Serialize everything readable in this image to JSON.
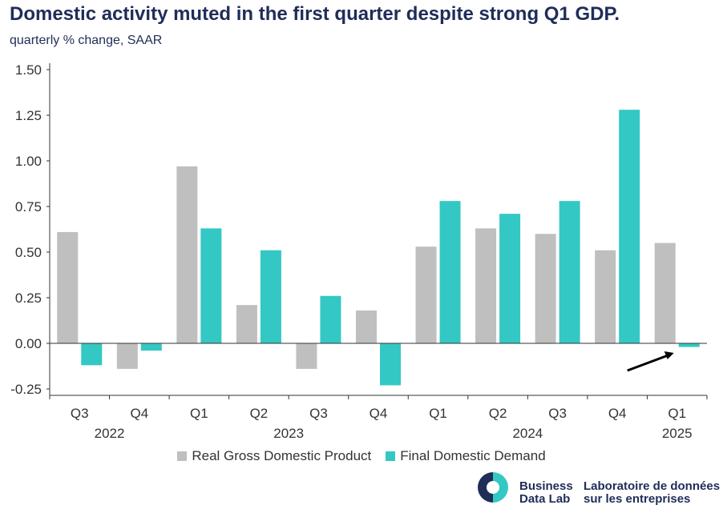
{
  "header": {
    "title": "Domestic activity muted in the first quarter despite strong Q1 GDP.",
    "subtitle": "quarterly % change, SAAR"
  },
  "colors": {
    "gdp": "#bfbfbf",
    "fdd": "#33c8c3",
    "axis": "#333333",
    "title": "#1f2d58"
  },
  "chart_data": {
    "type": "bar",
    "categories": [
      "Q3",
      "Q4",
      "Q1",
      "Q2",
      "Q3",
      "Q4",
      "Q1",
      "Q2",
      "Q3",
      "Q4",
      "Q1"
    ],
    "year_labels": [
      {
        "label": "2022",
        "from": 0,
        "to": 1
      },
      {
        "label": "2023",
        "from": 2,
        "to": 5
      },
      {
        "label": "2024",
        "from": 6,
        "to": 9
      },
      {
        "label": "2025",
        "from": 10,
        "to": 10
      }
    ],
    "series": [
      {
        "name": "Real Gross Domestic Product",
        "color": "#bfbfbf",
        "values": [
          0.61,
          -0.14,
          0.97,
          0.21,
          -0.14,
          0.18,
          0.53,
          0.63,
          0.6,
          0.51,
          0.55
        ]
      },
      {
        "name": "Final Domestic Demand",
        "color": "#33c8c3",
        "values": [
          -0.12,
          -0.04,
          0.63,
          0.51,
          0.26,
          -0.23,
          0.78,
          0.71,
          0.78,
          1.28,
          -0.02
        ]
      }
    ],
    "ylim": [
      -0.25,
      1.5
    ],
    "yticks": [
      "1.50",
      "1.25",
      "1.00",
      "0.75",
      "0.50",
      "0.25",
      "0.00",
      "-0.25"
    ],
    "ytick_values": [
      1.5,
      1.25,
      1.0,
      0.75,
      0.5,
      0.25,
      0.0,
      -0.25
    ],
    "grid": false,
    "legend": "bottom-center",
    "annotation": "arrow pointing to 2025 Q1 Final Domestic Demand bar"
  },
  "legend": {
    "gdp_label": "Real Gross Domestic Product",
    "fdd_label": "Final Domestic Demand"
  },
  "branding": {
    "english": "Business\nData Lab",
    "french": "Laboratoire de données\nsur les entreprises",
    "logo_icon": "business-data-lab-logo-icon"
  }
}
